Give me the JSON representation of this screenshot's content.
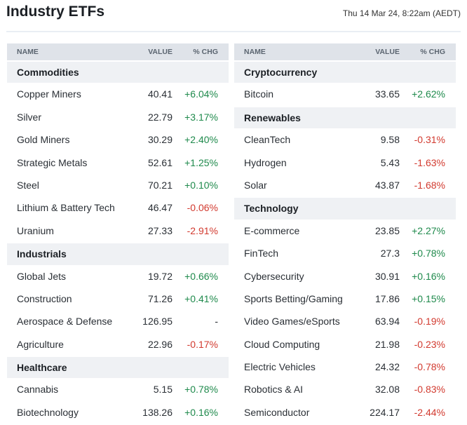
{
  "header": {
    "title": "Industry ETFs",
    "timestamp": "Thu 14 Mar 24, 8:22am (AEDT)"
  },
  "tables": [
    {
      "columns": [
        "NAME",
        "VALUE",
        "% CHG"
      ],
      "groups": [
        {
          "name": "Commodities",
          "rows": [
            [
              "Copper Miners",
              "40.41",
              "+6.04%"
            ],
            [
              "Silver",
              "22.79",
              "+3.17%"
            ],
            [
              "Gold Miners",
              "30.29",
              "+2.40%"
            ],
            [
              "Strategic Metals",
              "52.61",
              "+1.25%"
            ],
            [
              "Steel",
              "70.21",
              "+0.10%"
            ],
            [
              "Lithium & Battery Tech",
              "46.47",
              "-0.06%"
            ],
            [
              "Uranium",
              "27.33",
              "-2.91%"
            ]
          ]
        },
        {
          "name": "Industrials",
          "rows": [
            [
              "Global Jets",
              "19.72",
              "+0.66%"
            ],
            [
              "Construction",
              "71.26",
              "+0.41%"
            ],
            [
              "Aerospace & Defense",
              "126.95",
              "-"
            ],
            [
              "Agriculture",
              "22.96",
              "-0.17%"
            ]
          ]
        },
        {
          "name": "Healthcare",
          "rows": [
            [
              "Cannabis",
              "5.15",
              "+0.78%"
            ],
            [
              "Biotechnology",
              "138.26",
              "+0.16%"
            ]
          ]
        }
      ]
    },
    {
      "columns": [
        "NAME",
        "VALUE",
        "% CHG"
      ],
      "groups": [
        {
          "name": "Cryptocurrency",
          "rows": [
            [
              "Bitcoin",
              "33.65",
              "+2.62%"
            ]
          ]
        },
        {
          "name": "Renewables",
          "rows": [
            [
              "CleanTech",
              "9.58",
              "-0.31%"
            ],
            [
              "Hydrogen",
              "5.43",
              "-1.63%"
            ],
            [
              "Solar",
              "43.87",
              "-1.68%"
            ]
          ]
        },
        {
          "name": "Technology",
          "rows": [
            [
              "E-commerce",
              "23.85",
              "+2.27%"
            ],
            [
              "FinTech",
              "27.3",
              "+0.78%"
            ],
            [
              "Cybersecurity",
              "30.91",
              "+0.16%"
            ],
            [
              "Sports Betting/Gaming",
              "17.86",
              "+0.15%"
            ],
            [
              "Video Games/eSports",
              "63.94",
              "-0.19%"
            ],
            [
              "Cloud Computing",
              "21.98",
              "-0.23%"
            ],
            [
              "Electric Vehicles",
              "24.32",
              "-0.78%"
            ],
            [
              "Robotics & AI",
              "32.08",
              "-0.83%"
            ],
            [
              "Semiconductor",
              "224.17",
              "-2.44%"
            ]
          ]
        }
      ]
    }
  ]
}
